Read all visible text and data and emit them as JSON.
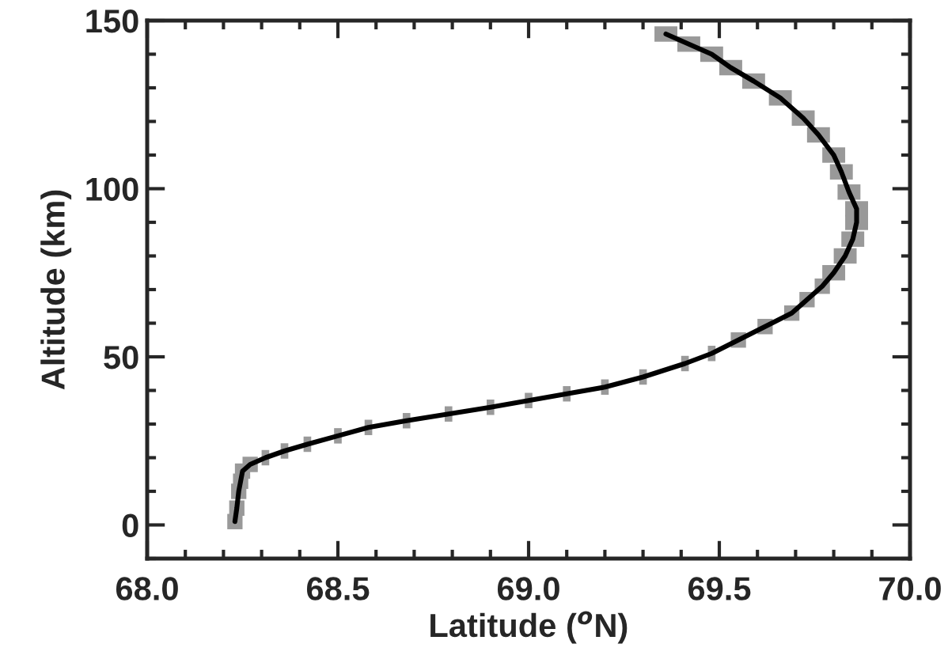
{
  "chart_data": {
    "type": "line",
    "xlabel": "Latitude ($^{o}$N)",
    "ylabel": "Altitude (km)",
    "series": [
      {
        "color": "#000000",
        "x": [
          68.23,
          68.235,
          68.24,
          68.245,
          68.25,
          68.27,
          68.31,
          68.36,
          68.42,
          68.5,
          68.58,
          68.68,
          68.79,
          68.9,
          69.0,
          69.1,
          69.2,
          69.3,
          69.41,
          69.48,
          69.55,
          69.62,
          69.69,
          69.73,
          69.77,
          69.8,
          69.83,
          69.85,
          69.86,
          69.86,
          69.84,
          69.82,
          69.8,
          69.76,
          69.72,
          69.66,
          69.59,
          69.53,
          69.48,
          69.42,
          69.36
        ],
        "values": [
          1,
          5,
          10,
          13,
          16,
          18,
          20,
          22,
          24,
          26.5,
          29,
          31,
          33,
          35,
          37,
          39,
          41,
          44,
          48,
          51,
          55,
          59,
          63,
          67,
          71,
          75,
          80,
          85,
          90,
          94,
          99,
          105,
          110,
          116,
          121,
          127,
          132,
          136,
          140,
          143,
          146
        ],
        "xerrors": [
          0.02,
          0.02,
          0.02,
          0.02,
          0.02,
          0.02,
          0.01,
          0.01,
          0.01,
          0.01,
          0.01,
          0.01,
          0.01,
          0.01,
          0.01,
          0.01,
          0.01,
          0.01,
          0.01,
          0.01,
          0.02,
          0.02,
          0.02,
          0.02,
          0.02,
          0.03,
          0.03,
          0.03,
          0.03,
          0.03,
          0.03,
          0.03,
          0.03,
          0.03,
          0.03,
          0.03,
          0.03,
          0.03,
          0.03,
          0.03,
          0.03
        ]
      }
    ],
    "xlim": [
      68.0,
      70.0
    ],
    "xticks": [
      {
        "value": 68.0,
        "label": "68.0"
      },
      {
        "value": 68.5,
        "label": "68.5"
      },
      {
        "value": 69.0,
        "label": "69.0"
      },
      {
        "value": 69.5,
        "label": "69.5"
      },
      {
        "value": 70.0,
        "label": "70.0"
      }
    ],
    "ylim": [
      -10,
      150
    ],
    "yticks": [
      0,
      50,
      100,
      150
    ],
    "grid": false,
    "legend": false
  }
}
